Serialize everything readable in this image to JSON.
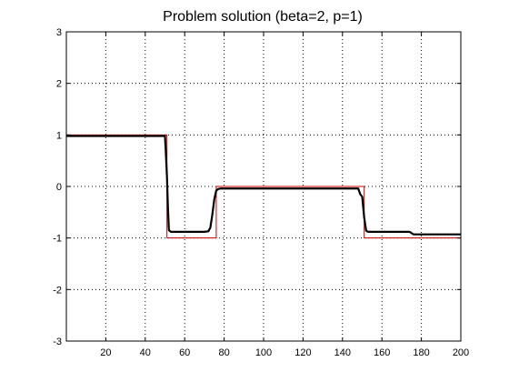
{
  "chart_data": {
    "type": "line",
    "title": "Problem solution (beta=2, p=1)",
    "xlabel": "",
    "ylabel": "",
    "xlim": [
      0,
      200
    ],
    "ylim": [
      -3,
      3
    ],
    "xticks": [
      20,
      40,
      60,
      80,
      100,
      120,
      140,
      160,
      180,
      200
    ],
    "yticks": [
      -3,
      -2,
      -1,
      0,
      1,
      2,
      3
    ],
    "grid": true,
    "series": [
      {
        "color": "#cc0000",
        "style": "step",
        "x": [
          0,
          51,
          51,
          76,
          76,
          151,
          151,
          200
        ],
        "y": [
          1,
          1,
          -1,
          -1,
          0,
          0,
          -1,
          -1
        ]
      },
      {
        "color": "#000000",
        "style": "line",
        "x": [
          0,
          50,
          50.5,
          51,
          51.5,
          52,
          53,
          70,
          72,
          73,
          74,
          75,
          76,
          77,
          78,
          80,
          148,
          149,
          150,
          151,
          152,
          153,
          174,
          176,
          200
        ],
        "y": [
          0.98,
          0.98,
          0.6,
          0.2,
          -0.4,
          -0.85,
          -0.88,
          -0.88,
          -0.87,
          -0.8,
          -0.55,
          -0.25,
          -0.08,
          -0.05,
          -0.04,
          -0.04,
          -0.04,
          -0.15,
          -0.2,
          -0.6,
          -0.86,
          -0.88,
          -0.88,
          -0.93,
          -0.93
        ]
      }
    ]
  }
}
